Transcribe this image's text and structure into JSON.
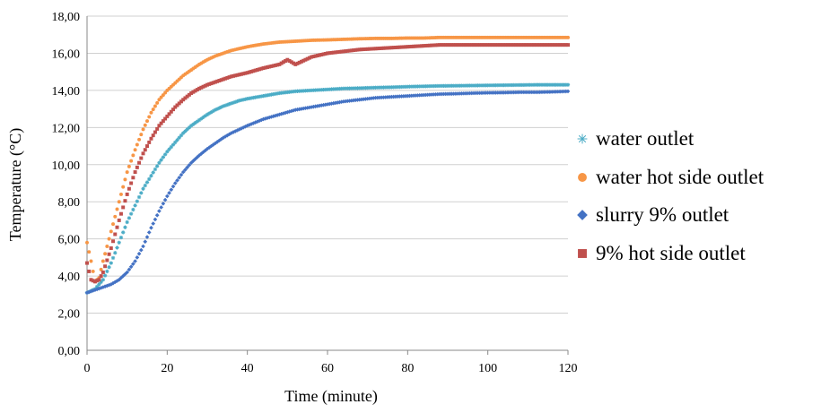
{
  "chart_data": {
    "type": "scatter",
    "xlabel": "Time (minute)",
    "ylabel": "Temperature (°C)",
    "xlim": [
      0,
      120
    ],
    "ylim": [
      0,
      18
    ],
    "x_ticks": [
      "0",
      "20",
      "40",
      "60",
      "80",
      "100",
      "120"
    ],
    "y_ticks": [
      "0,00",
      "2,00",
      "4,00",
      "6,00",
      "8,00",
      "10,00",
      "12,00",
      "14,00",
      "16,00",
      "18,00"
    ],
    "grid": "horizontal",
    "legend_position": "right",
    "series": [
      {
        "name": "water outlet",
        "color": "#4bacc6",
        "marker": "asterisk",
        "x": [
          0,
          2,
          4,
          6,
          8,
          10,
          12,
          14,
          16,
          18,
          20,
          22,
          24,
          26,
          28,
          30,
          32,
          34,
          36,
          38,
          40,
          44,
          48,
          52,
          56,
          60,
          64,
          68,
          72,
          76,
          80,
          84,
          88,
          92,
          96,
          100,
          104,
          108,
          112,
          116,
          120
        ],
        "y": [
          3.1,
          3.3,
          3.8,
          4.7,
          5.8,
          6.9,
          7.8,
          8.7,
          9.4,
          10.1,
          10.7,
          11.2,
          11.7,
          12.1,
          12.4,
          12.7,
          12.95,
          13.15,
          13.3,
          13.45,
          13.55,
          13.7,
          13.85,
          13.95,
          14.0,
          14.05,
          14.1,
          14.12,
          14.15,
          14.17,
          14.2,
          14.22,
          14.24,
          14.25,
          14.26,
          14.27,
          14.28,
          14.29,
          14.3,
          14.3,
          14.3
        ]
      },
      {
        "name": "water hot side outlet",
        "color": "#f79646",
        "marker": "circle",
        "x": [
          0,
          1,
          2,
          3,
          4,
          6,
          8,
          10,
          12,
          14,
          16,
          18,
          20,
          22,
          24,
          26,
          28,
          30,
          32,
          34,
          36,
          38,
          40,
          44,
          48,
          52,
          56,
          60,
          64,
          68,
          72,
          76,
          80,
          84,
          88,
          92,
          96,
          100,
          104,
          108,
          112,
          116,
          120
        ],
        "y": [
          5.8,
          4.8,
          3.7,
          3.9,
          4.8,
          6.4,
          8.0,
          9.6,
          10.8,
          11.9,
          12.8,
          13.5,
          14.0,
          14.4,
          14.8,
          15.1,
          15.4,
          15.65,
          15.85,
          16.0,
          16.15,
          16.25,
          16.35,
          16.5,
          16.6,
          16.65,
          16.7,
          16.72,
          16.75,
          16.78,
          16.8,
          16.8,
          16.82,
          16.82,
          16.85,
          16.85,
          16.85,
          16.85,
          16.85,
          16.85,
          16.85,
          16.85,
          16.85
        ]
      },
      {
        "name": "slurry 9% outlet",
        "color": "#4472c4",
        "marker": "diamond",
        "x": [
          0,
          2,
          4,
          6,
          8,
          10,
          12,
          14,
          16,
          18,
          20,
          22,
          24,
          26,
          28,
          30,
          32,
          34,
          36,
          38,
          40,
          44,
          48,
          52,
          56,
          60,
          64,
          68,
          72,
          76,
          80,
          84,
          88,
          92,
          96,
          100,
          104,
          108,
          112,
          116,
          120
        ],
        "y": [
          3.1,
          3.25,
          3.4,
          3.55,
          3.8,
          4.2,
          4.8,
          5.6,
          6.6,
          7.5,
          8.3,
          9.0,
          9.6,
          10.1,
          10.5,
          10.85,
          11.15,
          11.45,
          11.7,
          11.9,
          12.1,
          12.45,
          12.7,
          12.95,
          13.1,
          13.25,
          13.4,
          13.5,
          13.6,
          13.65,
          13.7,
          13.75,
          13.8,
          13.82,
          13.85,
          13.87,
          13.88,
          13.9,
          13.9,
          13.92,
          13.95
        ]
      },
      {
        "name": "9% hot side outlet",
        "color": "#c0504d",
        "marker": "square",
        "x": [
          0,
          1,
          2,
          3,
          4,
          6,
          8,
          10,
          12,
          14,
          16,
          18,
          20,
          22,
          24,
          26,
          28,
          30,
          32,
          34,
          36,
          38,
          40,
          44,
          48,
          50,
          52,
          54,
          56,
          60,
          64,
          68,
          72,
          76,
          80,
          84,
          88,
          92,
          96,
          100,
          104,
          108,
          112,
          116,
          120
        ],
        "y": [
          4.7,
          3.8,
          3.7,
          3.8,
          4.2,
          5.5,
          7.0,
          8.4,
          9.6,
          10.6,
          11.4,
          12.1,
          12.6,
          13.1,
          13.5,
          13.85,
          14.1,
          14.3,
          14.45,
          14.6,
          14.75,
          14.85,
          14.95,
          15.2,
          15.4,
          15.65,
          15.4,
          15.6,
          15.8,
          16.0,
          16.1,
          16.2,
          16.25,
          16.3,
          16.35,
          16.4,
          16.45,
          16.45,
          16.45,
          16.45,
          16.45,
          16.45,
          16.45,
          16.45,
          16.45
        ]
      }
    ]
  }
}
